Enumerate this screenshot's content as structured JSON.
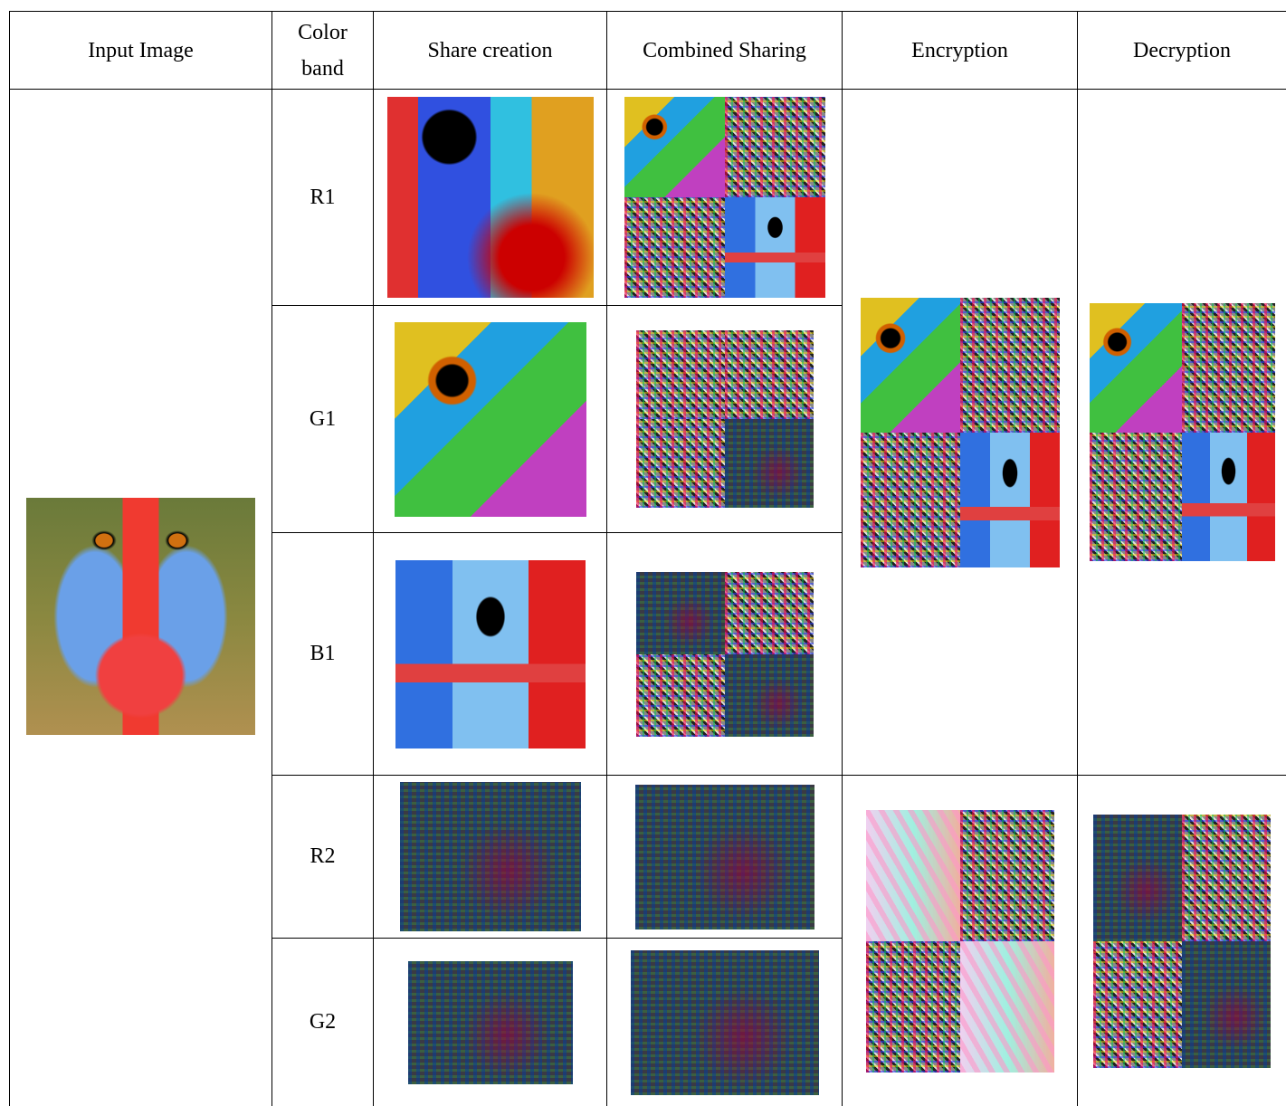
{
  "table": {
    "header": [
      "Input Image",
      "Color band",
      "Share creation",
      "Combined Sharing",
      "Encryption",
      "Decryption"
    ],
    "bands": [
      "R1",
      "G1",
      "B1",
      "R2",
      "G2"
    ]
  }
}
